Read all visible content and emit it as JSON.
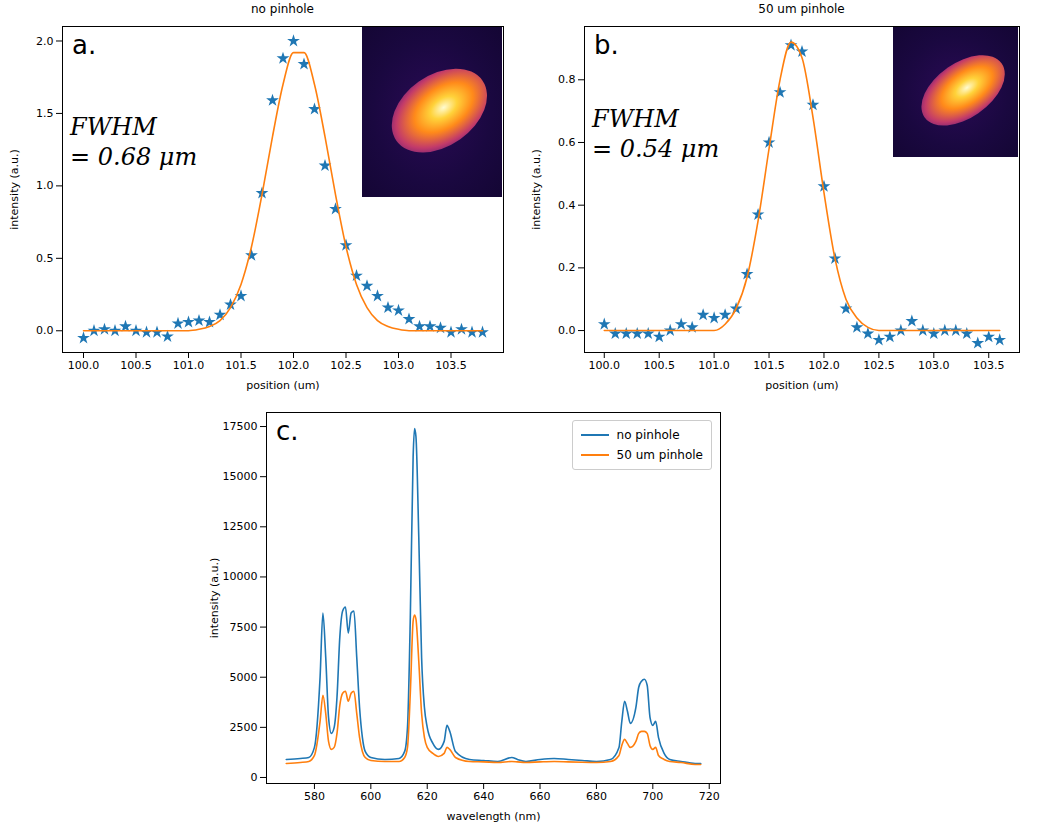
{
  "chart_data": [
    {
      "type": "scatter",
      "panel_label": "a.",
      "title": "no pinhole",
      "xlabel": "position (um)",
      "ylabel": "intensity (a.u.)",
      "annotation": [
        "FWHM",
        "= 0.68 μm"
      ],
      "xlim": [
        99.8,
        104.0
      ],
      "xticks": [
        {
          "value": 100.0,
          "label": "100.0"
        },
        100.5,
        {
          "value": 101.0,
          "label": "101.0"
        },
        101.5,
        {
          "value": 102.0,
          "label": "102.0"
        },
        102.5,
        {
          "value": 103.0,
          "label": "103.0"
        },
        103.5
      ],
      "ylim": [
        -0.15,
        2.1
      ],
      "yticks": [
        {
          "value": 0,
          "label": "0.0"
        },
        0.5,
        {
          "value": 1,
          "label": "1.0"
        },
        1.5,
        {
          "value": 2,
          "label": "2.0"
        }
      ],
      "grid": false,
      "series": [
        {
          "type": "scatter",
          "color": "#1f77b4",
          "marker": "star",
          "x": [
            100.0,
            100.1,
            100.2,
            100.3,
            100.4,
            100.5,
            100.6,
            100.7,
            100.8,
            100.9,
            101.0,
            101.1,
            101.2,
            101.3,
            101.4,
            101.5,
            101.6,
            101.7,
            101.8,
            101.9,
            102.0,
            102.1,
            102.2,
            102.3,
            102.4,
            102.5,
            102.6,
            102.7,
            102.8,
            102.9,
            103.0,
            103.1,
            103.2,
            103.3,
            103.4,
            103.5,
            103.6,
            103.7,
            103.8
          ],
          "values": [
            -0.05,
            0.0,
            0.01,
            0.0,
            0.03,
            0.0,
            -0.01,
            -0.01,
            -0.04,
            0.05,
            0.06,
            0.07,
            0.06,
            0.11,
            0.18,
            0.24,
            0.52,
            0.95,
            1.59,
            1.88,
            2.0,
            1.84,
            1.53,
            1.14,
            0.84,
            0.59,
            0.38,
            0.31,
            0.24,
            0.16,
            0.14,
            0.08,
            0.03,
            0.03,
            0.02,
            -0.01,
            0.01,
            -0.01,
            -0.01
          ]
        },
        {
          "type": "line",
          "color": "#ff7f0e",
          "line_style": "solid",
          "x": [
            100.0,
            101.0,
            101.1,
            101.2,
            101.3,
            101.4,
            101.5,
            101.6,
            101.7,
            101.8,
            101.9,
            102.0,
            102.1,
            102.2,
            102.3,
            102.4,
            102.5,
            102.6,
            102.7,
            102.8,
            102.9,
            103.0,
            103.1,
            103.8
          ],
          "values": [
            0.0,
            0.0,
            0.01,
            0.03,
            0.07,
            0.16,
            0.32,
            0.58,
            0.94,
            1.34,
            1.7,
            1.92,
            1.92,
            1.7,
            1.34,
            0.94,
            0.58,
            0.32,
            0.16,
            0.07,
            0.03,
            0.01,
            0.0,
            0.0
          ]
        }
      ]
    },
    {
      "type": "scatter",
      "panel_label": "b.",
      "title": "50 um pinhole",
      "xlabel": "position (um)",
      "ylabel": "intensity (a.u.)",
      "annotation": [
        "FWHM",
        "= 0.54 μm"
      ],
      "xlim": [
        99.82,
        103.78
      ],
      "xticks": [
        {
          "value": 100.0,
          "label": "100.0"
        },
        100.5,
        {
          "value": 101.0,
          "label": "101.0"
        },
        101.5,
        {
          "value": 102.0,
          "label": "102.0"
        },
        102.5,
        {
          "value": 103.0,
          "label": "103.0"
        },
        103.5
      ],
      "ylim": [
        -0.07,
        0.97
      ],
      "yticks": [
        {
          "value": 0,
          "label": "0.0"
        },
        0.2,
        0.4,
        0.6,
        0.8
      ],
      "grid": false,
      "series": [
        {
          "type": "scatter",
          "color": "#1f77b4",
          "marker": "star",
          "x": [
            100.0,
            100.1,
            100.2,
            100.3,
            100.4,
            100.5,
            100.6,
            100.7,
            100.8,
            100.9,
            101.0,
            101.1,
            101.2,
            101.3,
            101.4,
            101.5,
            101.6,
            101.7,
            101.8,
            101.9,
            102.0,
            102.1,
            102.2,
            102.3,
            102.4,
            102.5,
            102.6,
            102.7,
            102.8,
            102.9,
            103.0,
            103.1,
            103.2,
            103.3,
            103.4,
            103.5,
            103.6
          ],
          "values": [
            0.02,
            -0.01,
            -0.01,
            -0.01,
            -0.01,
            -0.02,
            0.0,
            0.02,
            0.01,
            0.05,
            0.04,
            0.05,
            0.07,
            0.18,
            0.37,
            0.6,
            0.76,
            0.91,
            0.89,
            0.72,
            0.46,
            0.23,
            0.07,
            0.01,
            -0.01,
            -0.03,
            -0.02,
            0.0,
            0.03,
            0.0,
            -0.01,
            0.0,
            0.0,
            -0.01,
            -0.04,
            -0.02,
            -0.03
          ]
        },
        {
          "type": "line",
          "color": "#ff7f0e",
          "line_style": "solid",
          "x": [
            100.0,
            101.0,
            101.1,
            101.2,
            101.3,
            101.4,
            101.5,
            101.6,
            101.7,
            101.8,
            101.9,
            102.0,
            102.1,
            102.2,
            102.3,
            102.4,
            102.5,
            103.6
          ],
          "values": [
            0.0,
            0.0,
            0.02,
            0.07,
            0.17,
            0.35,
            0.58,
            0.8,
            0.92,
            0.87,
            0.68,
            0.44,
            0.23,
            0.1,
            0.04,
            0.01,
            0.0,
            0.0
          ]
        }
      ]
    },
    {
      "type": "line",
      "panel_label": "c.",
      "xlabel": "wavelength (nm)",
      "ylabel": "intensity (a.u.)",
      "xlim": [
        563,
        724
      ],
      "xticks": [
        580,
        600,
        620,
        640,
        660,
        680,
        700,
        720
      ],
      "ylim": [
        -300,
        18200
      ],
      "yticks": [
        0,
        2500,
        5000,
        7500,
        10000,
        12500,
        15000,
        17500
      ],
      "grid": false,
      "legend": "upper right",
      "x": [
        570,
        575,
        578,
        580,
        582,
        583,
        584,
        585,
        586,
        587,
        588,
        589,
        590,
        591,
        592,
        593,
        594,
        595,
        596,
        597,
        598,
        600,
        605,
        610,
        612,
        613,
        614,
        615,
        615.5,
        616,
        617,
        618,
        619,
        620,
        622,
        624,
        626,
        627,
        628,
        630,
        635,
        640,
        645,
        650,
        652,
        655,
        660,
        665,
        670,
        675,
        680,
        685,
        688,
        689,
        690,
        691,
        692,
        694,
        695,
        696,
        697,
        698,
        699,
        700,
        701,
        702,
        704,
        706,
        710,
        715,
        717
      ],
      "series": [
        {
          "name": "no pinhole",
          "color": "#1f77b4",
          "line_style": "solid",
          "values": [
            900,
            950,
            1000,
            1500,
            5000,
            8200,
            6000,
            3000,
            2200,
            2500,
            4000,
            7000,
            8300,
            8500,
            7200,
            8200,
            8300,
            6000,
            3500,
            2000,
            1300,
            1000,
            900,
            950,
            1300,
            2500,
            8000,
            16000,
            17400,
            17000,
            12000,
            6000,
            3500,
            2500,
            1700,
            1400,
            1800,
            2600,
            2300,
            1300,
            900,
            850,
            800,
            1000,
            900,
            800,
            900,
            950,
            900,
            850,
            800,
            900,
            1500,
            2800,
            3800,
            3300,
            2700,
            3500,
            4500,
            4800,
            4900,
            4600,
            3000,
            2600,
            2800,
            2000,
            1200,
            900,
            800,
            700,
            700
          ]
        },
        {
          "name": "50 um pinhole",
          "color": "#ff7f0e",
          "line_style": "solid",
          "values": [
            700,
            750,
            800,
            1100,
            2800,
            4100,
            3200,
            1800,
            1400,
            1500,
            2200,
            3600,
            4200,
            4300,
            3800,
            4200,
            4300,
            3200,
            2000,
            1300,
            1000,
            850,
            800,
            800,
            1000,
            1500,
            4200,
            7800,
            8100,
            7900,
            5800,
            3200,
            2000,
            1500,
            1200,
            1050,
            1200,
            1500,
            1400,
            1000,
            800,
            780,
            750,
            800,
            780,
            750,
            780,
            800,
            780,
            760,
            750,
            800,
            1100,
            1600,
            1900,
            1700,
            1500,
            1800,
            2200,
            2300,
            2300,
            2200,
            1600,
            1400,
            1500,
            1100,
            900,
            800,
            750,
            650,
            650
          ]
        }
      ]
    }
  ]
}
